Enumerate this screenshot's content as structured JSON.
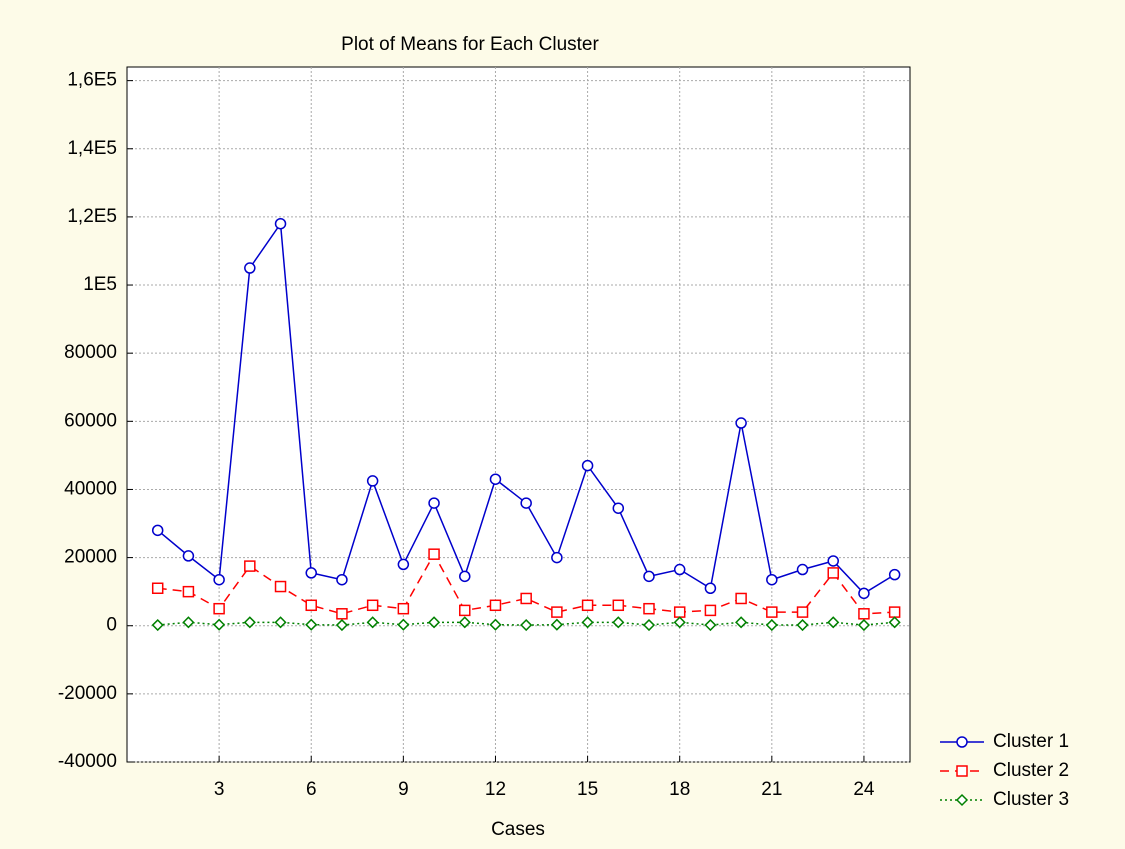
{
  "chart_data": {
    "type": "line",
    "title": "Plot of Means for Each Cluster",
    "x_label": "Cases",
    "x": [
      1,
      2,
      3,
      4,
      5,
      6,
      7,
      8,
      9,
      10,
      11,
      12,
      13,
      14,
      15,
      16,
      17,
      18,
      19,
      20,
      21,
      22,
      23,
      24,
      25
    ],
    "series": [
      {
        "name": "Cluster 1",
        "color": "#0000cc",
        "dash": "solid",
        "marker": "circle",
        "values": [
          28000,
          20500,
          13500,
          105000,
          118000,
          15500,
          13500,
          42500,
          18000,
          36000,
          14500,
          43000,
          36000,
          20000,
          47000,
          34500,
          14500,
          16500,
          11000,
          59500,
          13500,
          16500,
          19000,
          9500,
          15000
        ]
      },
      {
        "name": "Cluster 2",
        "color": "#ff0000",
        "dash": "dashed",
        "marker": "square",
        "values": [
          11000,
          10000,
          5000,
          17500,
          11500,
          6000,
          3500,
          6000,
          5000,
          21000,
          4500,
          6000,
          8000,
          4000,
          6000,
          6000,
          5000,
          4000,
          4500,
          8000,
          4000,
          4000,
          15500,
          3500,
          4000
        ]
      },
      {
        "name": "Cluster 3",
        "color": "#008000",
        "dash": "dotted",
        "marker": "diamond",
        "values": [
          200,
          1000,
          300,
          1000,
          1000,
          300,
          200,
          1000,
          300,
          1000,
          1000,
          300,
          200,
          300,
          1000,
          1000,
          200,
          1000,
          200,
          1000,
          200,
          200,
          1000,
          200,
          1000
        ]
      }
    ],
    "xlim": [
      0,
      25.5
    ],
    "xticks": [
      3,
      6,
      9,
      12,
      15,
      18,
      21,
      24
    ],
    "ylim": [
      -40000,
      164000
    ],
    "yticks": [
      -40000,
      -20000,
      0,
      20000,
      40000,
      60000,
      80000,
      {
        "value": 100000,
        "label": "1E5"
      },
      {
        "value": 120000,
        "label": "1,2E5"
      },
      {
        "value": 140000,
        "label": "1,4E5"
      },
      {
        "value": 160000,
        "label": "1,6E5"
      }
    ],
    "grid": true,
    "legend": "bottom-right"
  }
}
